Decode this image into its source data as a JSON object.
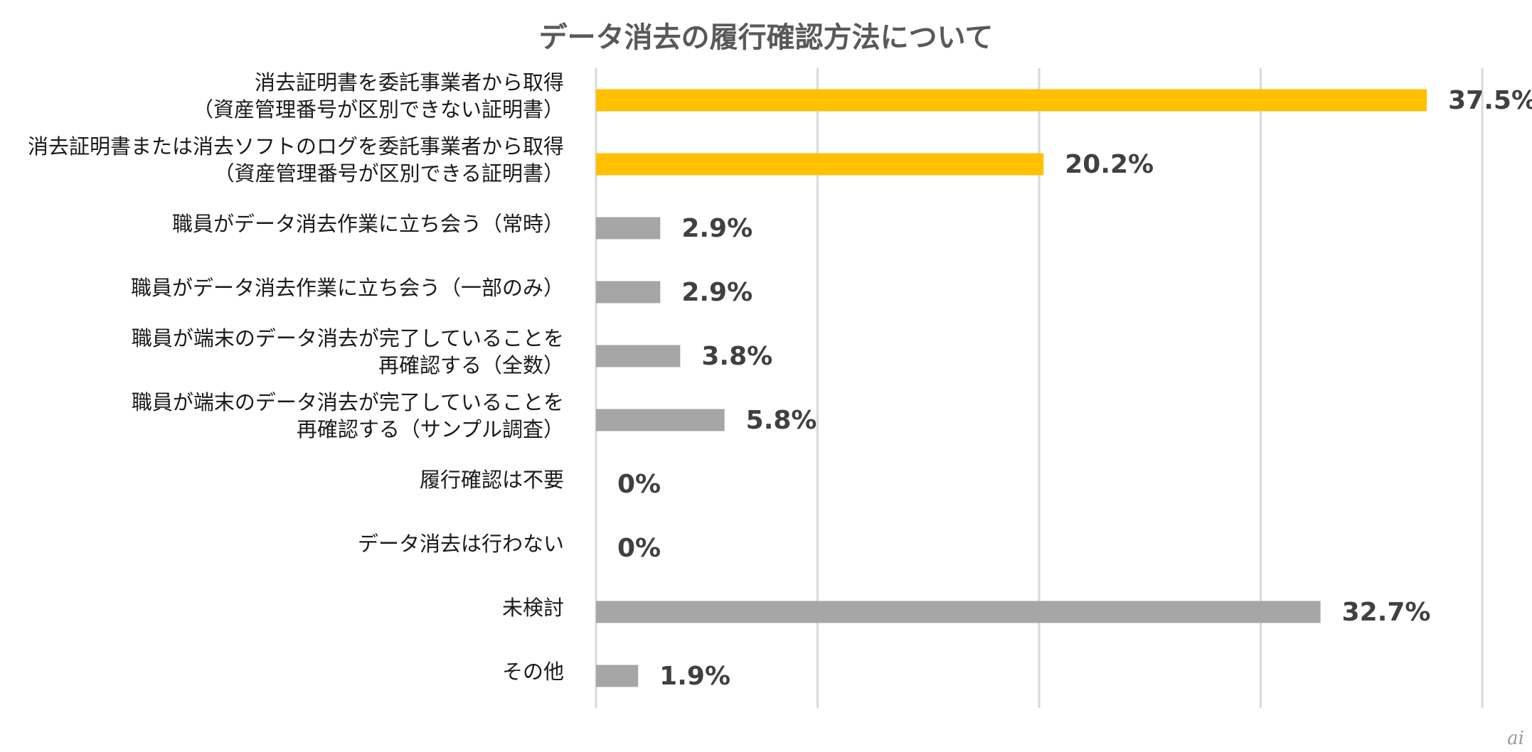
{
  "chart_data": {
    "type": "bar",
    "orientation": "horizontal",
    "title": "データ消去の履行確認方法について",
    "categories": [
      [
        "消去証明書を委託事業者から取得",
        "（資産管理番号が区別できない証明書）"
      ],
      [
        "消去証明書または消去ソフトのログを委託事業者から取得",
        "（資産管理番号が区別できる証明書）"
      ],
      [
        "職員がデータ消去作業に立ち会う（常時）"
      ],
      [
        "職員がデータ消去作業に立ち会う（一部のみ）"
      ],
      [
        "職員が端末のデータ消去が完了していることを",
        "再確認する（全数）"
      ],
      [
        "職員が端末のデータ消去が完了していることを",
        "再確認する（サンプル調査）"
      ],
      [
        "履行確認は不要"
      ],
      [
        "データ消去は行わない"
      ],
      [
        "未検討"
      ],
      [
        "その他"
      ]
    ],
    "values": [
      37.5,
      20.2,
      2.9,
      2.9,
      3.8,
      5.8,
      0,
      0,
      32.7,
      1.9
    ],
    "value_labels": [
      "37.5%",
      "20.2%",
      "2.9%",
      "2.9%",
      "3.8%",
      "5.8%",
      "0%",
      "0%",
      "32.7%",
      "1.9%"
    ],
    "bar_colors": [
      "#ffc000",
      "#ffc000",
      "#a6a6a6",
      "#a6a6a6",
      "#a6a6a6",
      "#a6a6a6",
      "#a6a6a6",
      "#a6a6a6",
      "#a6a6a6",
      "#a6a6a6"
    ],
    "xlim": [
      0,
      40
    ],
    "gridlines": [
      0,
      10,
      20,
      30,
      40
    ],
    "grid": true,
    "gridline_color": "#d9d9d9",
    "legend": "none"
  },
  "watermark": "ai"
}
